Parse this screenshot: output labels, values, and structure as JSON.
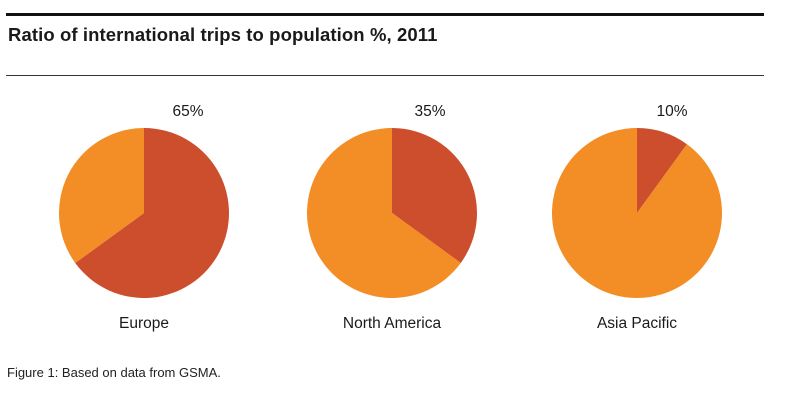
{
  "header": {
    "title": "Ratio of international trips to population %, 2011"
  },
  "chart_data": [
    {
      "type": "pie",
      "title": "",
      "category": "Europe",
      "value_label": "65%",
      "slices": [
        {
          "name": "",
          "value": 65,
          "color": "#cc4e2d"
        },
        {
          "name": "",
          "value": 35,
          "color": "#f38d25"
        }
      ]
    },
    {
      "type": "pie",
      "title": "",
      "category": "North America",
      "value_label": "35%",
      "slices": [
        {
          "name": "",
          "value": 35,
          "color": "#cc4e2d"
        },
        {
          "name": "",
          "value": 65,
          "color": "#f38d25"
        }
      ]
    },
    {
      "type": "pie",
      "title": "",
      "category": "Asia Pacific",
      "value_label": "10%",
      "slices": [
        {
          "name": "",
          "value": 10,
          "color": "#cc4e2d"
        },
        {
          "name": "",
          "value": 90,
          "color": "#f38d25"
        }
      ]
    }
  ],
  "footer": {
    "caption": "Figure 1: Based on data from GSMA."
  }
}
